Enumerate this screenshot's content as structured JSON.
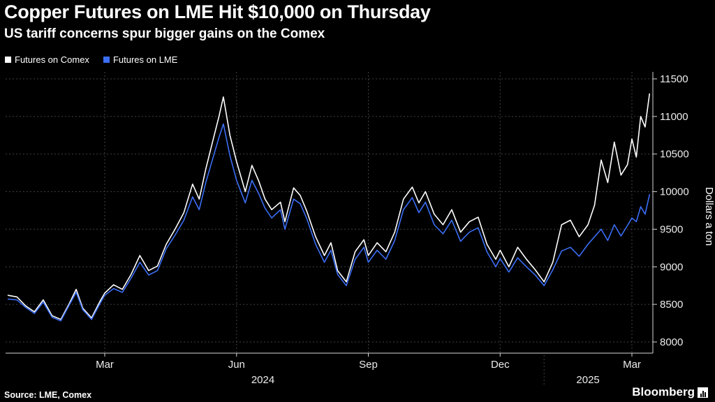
{
  "header": {
    "title": "Copper Futures on LME Hit $10,000 on Thursday",
    "subtitle": "US tariff concerns spur bigger gains on the Comex"
  },
  "legend": [
    {
      "label": "Futures on Comex",
      "color": "#ffffff"
    },
    {
      "label": "Futures on LME",
      "color": "#3b6ef5"
    }
  ],
  "footer": {
    "source": "Source: LME, Comex",
    "brand": "Bloomberg"
  },
  "chart_data": {
    "type": "line",
    "title": "Copper Futures on LME Hit $10,000 on Thursday",
    "subtitle": "US tariff concerns spur bigger gains on the Comex",
    "ylabel": "Dollars a ton",
    "ylim": [
      8000,
      11500
    ],
    "grid": true,
    "legend_position": "top-left",
    "x_unit": "months since Jan 2024",
    "x_ticks": [
      {
        "pos": 2,
        "label": "Mar"
      },
      {
        "pos": 5,
        "label": "Jun"
      },
      {
        "pos": 8,
        "label": "Sep"
      },
      {
        "pos": 11,
        "label": "Dec"
      },
      {
        "pos": 14,
        "label": "Mar"
      }
    ],
    "year_labels": [
      {
        "pos": 5.6,
        "label": "2024"
      },
      {
        "pos": 13.0,
        "label": "2025"
      }
    ],
    "year_separator_pos": 12,
    "y_ticks": [
      8000,
      8500,
      9000,
      9500,
      10000,
      10500,
      11000,
      11500
    ],
    "x": [
      -0.2,
      0,
      0.2,
      0.4,
      0.6,
      0.8,
      1,
      1.2,
      1.35,
      1.5,
      1.7,
      1.9,
      2,
      2.2,
      2.4,
      2.6,
      2.8,
      3,
      3.2,
      3.4,
      3.6,
      3.8,
      4,
      4.15,
      4.3,
      4.45,
      4.6,
      4.7,
      4.85,
      5,
      5.2,
      5.35,
      5.5,
      5.65,
      5.8,
      6,
      6.1,
      6.3,
      6.45,
      6.6,
      6.8,
      7,
      7.15,
      7.3,
      7.5,
      7.7,
      7.9,
      8,
      8.2,
      8.4,
      8.6,
      8.8,
      9,
      9.15,
      9.3,
      9.5,
      9.7,
      9.9,
      10.1,
      10.3,
      10.5,
      10.7,
      10.9,
      11,
      11.2,
      11.4,
      11.6,
      11.8,
      12,
      12.2,
      12.4,
      12.6,
      12.8,
      13,
      13.15,
      13.3,
      13.45,
      13.6,
      13.75,
      13.9,
      14,
      14.1,
      14.2,
      14.3,
      14.4
    ],
    "series": [
      {
        "name": "Futures on Comex",
        "color": "#ffffff",
        "values": [
          8620,
          8600,
          8480,
          8400,
          8560,
          8350,
          8300,
          8520,
          8700,
          8450,
          8320,
          8550,
          8650,
          8760,
          8700,
          8900,
          9150,
          8950,
          9010,
          9300,
          9500,
          9720,
          10100,
          9900,
          10300,
          10650,
          11000,
          11260,
          10750,
          10400,
          10000,
          10350,
          10150,
          9900,
          9760,
          9860,
          9600,
          10050,
          9950,
          9740,
          9400,
          9150,
          9320,
          8950,
          8800,
          9200,
          9360,
          9150,
          9320,
          9200,
          9460,
          9900,
          10060,
          9850,
          10000,
          9700,
          9560,
          9760,
          9460,
          9600,
          9660,
          9300,
          9100,
          9220,
          9000,
          9260,
          9100,
          8960,
          8800,
          9060,
          9560,
          9620,
          9400,
          9560,
          9820,
          10420,
          10120,
          10660,
          10220,
          10360,
          10700,
          10460,
          11000,
          10860,
          11300
        ]
      },
      {
        "name": "Futures on LME",
        "color": "#3b6ef5",
        "values": [
          8570,
          8560,
          8460,
          8380,
          8530,
          8330,
          8280,
          8500,
          8660,
          8430,
          8300,
          8520,
          8620,
          8710,
          8660,
          8850,
          9060,
          8890,
          8950,
          9240,
          9420,
          9620,
          9930,
          9760,
          10120,
          10420,
          10720,
          10900,
          10480,
          10150,
          9850,
          10150,
          9980,
          9780,
          9650,
          9760,
          9500,
          9900,
          9840,
          9640,
          9300,
          9060,
          9220,
          8900,
          8750,
          9100,
          9260,
          9060,
          9220,
          9100,
          9350,
          9760,
          9920,
          9720,
          9860,
          9560,
          9440,
          9620,
          9340,
          9460,
          9520,
          9200,
          9000,
          9110,
          8930,
          9120,
          9000,
          8890,
          8750,
          8960,
          9210,
          9260,
          9140,
          9300,
          9400,
          9500,
          9350,
          9560,
          9410,
          9550,
          9650,
          9600,
          9800,
          9700,
          9960
        ]
      }
    ]
  }
}
